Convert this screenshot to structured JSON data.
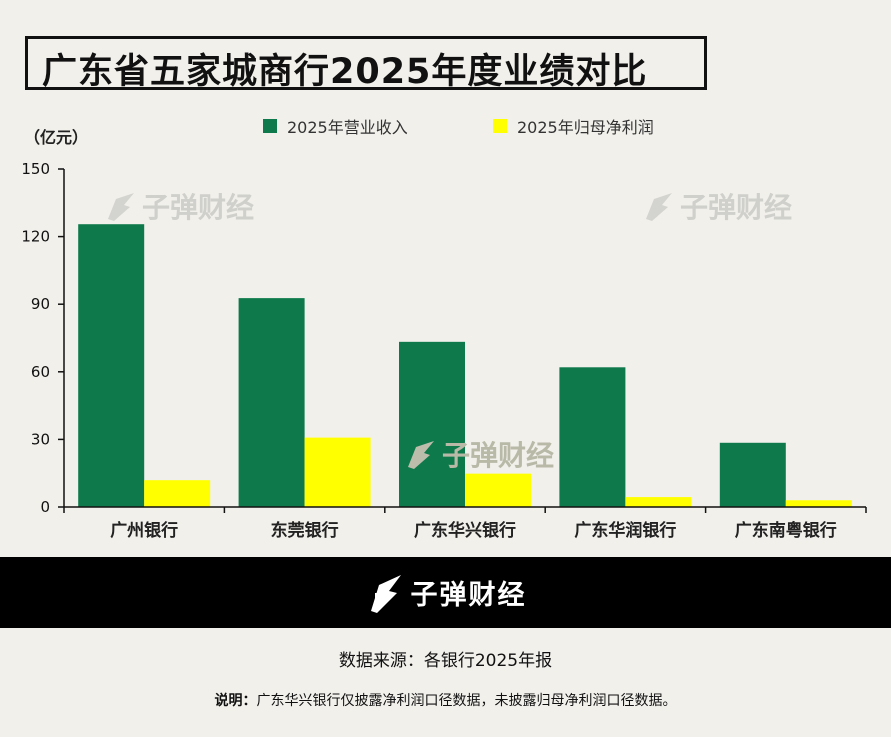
{
  "title": "广东省五家城商行2025年度业绩对比",
  "unit": "（亿元）",
  "watermark": "子弹财经",
  "footer": {
    "brand": "子弹财经",
    "source": "数据来源：各银行2025年报",
    "note_label": "说明：",
    "note_text": "广东华兴银行仅披露净利润口径数据，未披露归母净利润口径数据。"
  },
  "colors": {
    "revenue": "#0e7a4b",
    "profit": "#ffff00",
    "band": "#000000",
    "background": "#f2f0eb"
  },
  "chart_data": {
    "type": "bar",
    "categories": [
      "广州银行",
      "东莞银行",
      "广东华兴银行",
      "广东华润银行",
      "广东南粤银行"
    ],
    "series": [
      {
        "name": "2025年营业收入",
        "values": [
          125.5,
          92.7,
          73.3,
          62.0,
          28.5
        ]
      },
      {
        "name": "2025年归母净利润",
        "values": [
          11.9,
          30.8,
          14.8,
          4.4,
          3.0
        ]
      }
    ],
    "ylim": [
      0,
      150
    ],
    "yticks": [
      0,
      30,
      60,
      90,
      120,
      150
    ],
    "ylabel": "（亿元）",
    "legend_position": "top",
    "grid": false
  }
}
